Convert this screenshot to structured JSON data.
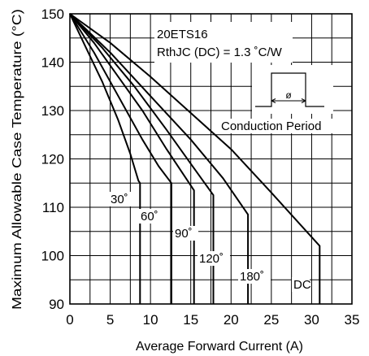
{
  "chart_data": {
    "type": "line",
    "xlabel": "Average Forward Current (A)",
    "ylabel": "Maximum Allowable Case Temperature (°C)",
    "xlim": [
      0,
      35
    ],
    "ylim": [
      90,
      150
    ],
    "xticks": [
      "0",
      "5",
      "10",
      "15",
      "20",
      "25",
      "30",
      "35"
    ],
    "yticks": [
      "150",
      "140",
      "130",
      "120",
      "110",
      "100",
      "90"
    ],
    "grid": true,
    "annotations": {
      "part": "20ETS16",
      "rth": "RthJC (DC) = 1.3 ˚C/W",
      "conduction": "Conduction Period",
      "phi": "ø"
    },
    "series": [
      {
        "name": "30˚",
        "points": [
          [
            0,
            150
          ],
          [
            2,
            143
          ],
          [
            4,
            136
          ],
          [
            6,
            128
          ],
          [
            7.5,
            121
          ],
          [
            8.5,
            115.5
          ],
          [
            8.7,
            115
          ],
          [
            8.7,
            90
          ]
        ]
      },
      {
        "name": "60˚",
        "points": [
          [
            0,
            150
          ],
          [
            3,
            142
          ],
          [
            6,
            133
          ],
          [
            9,
            124
          ],
          [
            11,
            118.5
          ],
          [
            12.6,
            115
          ],
          [
            12.6,
            90
          ]
        ]
      },
      {
        "name": "90˚",
        "points": [
          [
            0,
            150
          ],
          [
            3,
            144
          ],
          [
            6,
            137
          ],
          [
            9,
            130
          ],
          [
            12,
            122
          ],
          [
            14,
            117
          ],
          [
            15.4,
            113.5
          ],
          [
            15.4,
            90
          ]
        ]
      },
      {
        "name": "120˚",
        "points": [
          [
            0,
            150
          ],
          [
            4,
            143
          ],
          [
            8,
            135
          ],
          [
            12,
            126
          ],
          [
            15,
            119
          ],
          [
            17.8,
            112.5
          ],
          [
            17.8,
            90
          ]
        ]
      },
      {
        "name": "180˚",
        "points": [
          [
            0,
            150
          ],
          [
            5,
            142
          ],
          [
            10,
            133
          ],
          [
            15,
            124
          ],
          [
            19,
            116
          ],
          [
            22.1,
            108.5
          ],
          [
            22.1,
            90
          ]
        ]
      },
      {
        "name": "DC",
        "points": [
          [
            0,
            150
          ],
          [
            5,
            144
          ],
          [
            10,
            137
          ],
          [
            15,
            129.5
          ],
          [
            20,
            122
          ],
          [
            25,
            113
          ],
          [
            31,
            102
          ],
          [
            31,
            90
          ]
        ]
      }
    ]
  }
}
